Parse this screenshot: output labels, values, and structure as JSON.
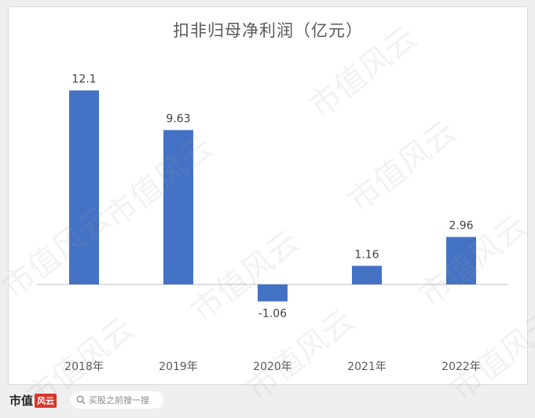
{
  "chart_data": {
    "type": "bar",
    "title": "扣非归母净利润（亿元）",
    "categories": [
      "2018年",
      "2019年",
      "2020年",
      "2021年",
      "2022年"
    ],
    "values": [
      12.1,
      9.63,
      -1.06,
      1.16,
      2.96
    ],
    "value_labels": [
      "12.1",
      "9.63",
      "-1.06",
      "1.16",
      "2.96"
    ],
    "ylim": [
      -2,
      14
    ],
    "grid": false,
    "legend": "none",
    "bar_color": "#4472c4"
  },
  "watermark_text": "市值风云",
  "footer": {
    "brand": "市值",
    "brand_badge": "风云",
    "search_placeholder": "买股之前搜一搜"
  }
}
